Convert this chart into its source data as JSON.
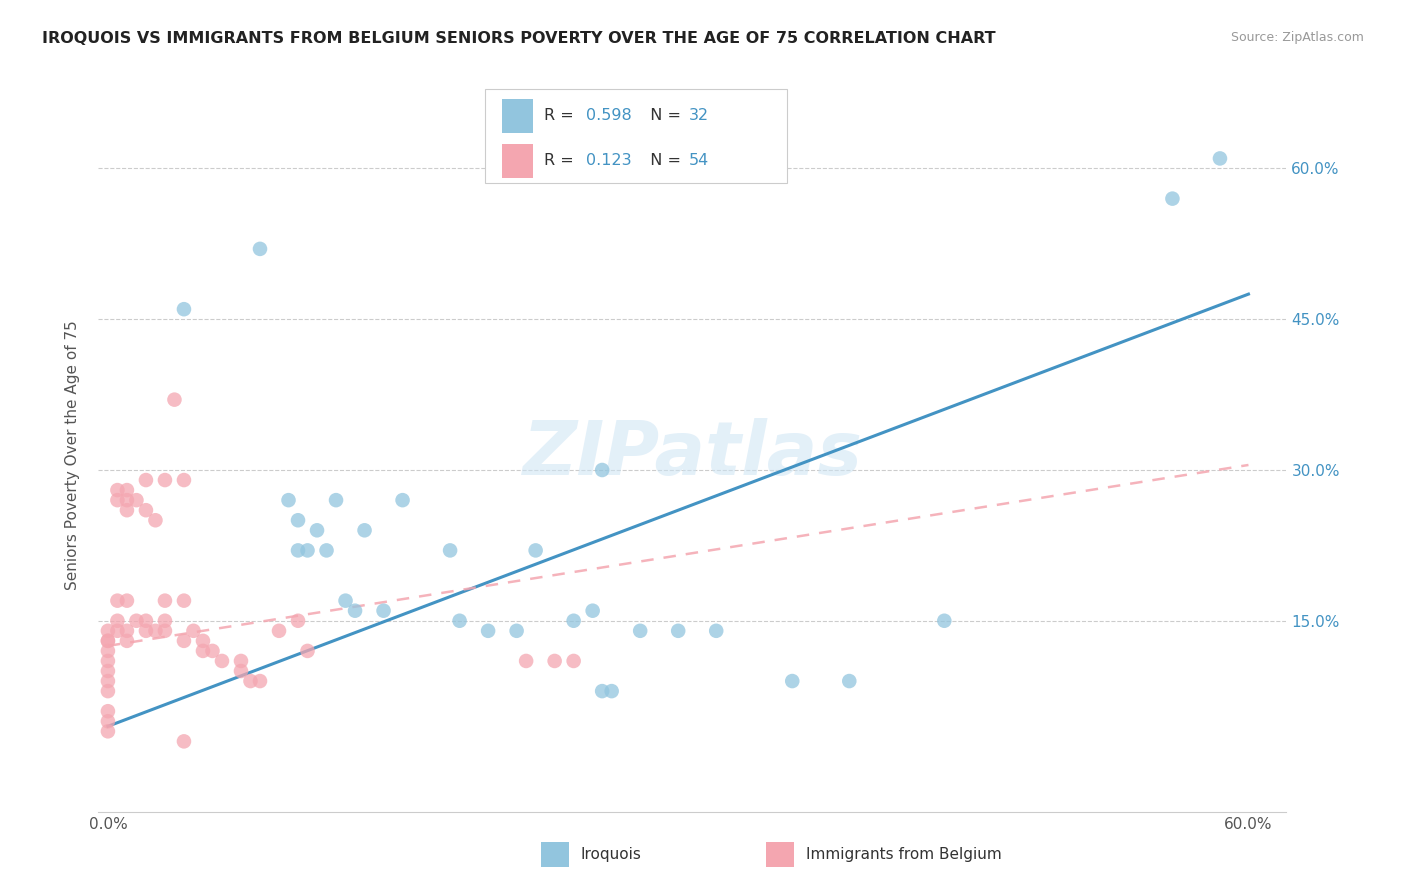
{
  "title": "IROQUOIS VS IMMIGRANTS FROM BELGIUM SENIORS POVERTY OVER THE AGE OF 75 CORRELATION CHART",
  "source": "Source: ZipAtlas.com",
  "ylabel": "Seniors Poverty Over the Age of 75",
  "legend_label1": "Iroquois",
  "legend_label2": "Immigrants from Belgium",
  "R1": 0.598,
  "N1": 32,
  "R2": 0.123,
  "N2": 54,
  "xlim": [
    -0.005,
    0.62
  ],
  "ylim": [
    -0.04,
    0.67
  ],
  "xticks": [
    0.0,
    0.6
  ],
  "xtick_labels": [
    "0.0%",
    "60.0%"
  ],
  "yticks_right": [
    0.15,
    0.3,
    0.45,
    0.6
  ],
  "ytick_labels_right": [
    "15.0%",
    "30.0%",
    "45.0%",
    "60.0%"
  ],
  "color_blue": "#92c5de",
  "color_pink": "#f4a6b0",
  "line_blue": "#4393c3",
  "line_pink": "#f4a6b0",
  "watermark": "ZIPatlas",
  "blue_x": [
    0.04,
    0.08,
    0.095,
    0.1,
    0.1,
    0.105,
    0.11,
    0.115,
    0.12,
    0.125,
    0.13,
    0.135,
    0.145,
    0.155,
    0.18,
    0.185,
    0.2,
    0.215,
    0.225,
    0.245,
    0.255,
    0.26,
    0.265,
    0.28,
    0.3,
    0.32,
    0.36,
    0.39,
    0.44,
    0.56,
    0.585,
    0.26
  ],
  "blue_y": [
    0.46,
    0.52,
    0.27,
    0.25,
    0.22,
    0.22,
    0.24,
    0.22,
    0.27,
    0.17,
    0.16,
    0.24,
    0.16,
    0.27,
    0.22,
    0.15,
    0.14,
    0.14,
    0.22,
    0.15,
    0.16,
    0.08,
    0.08,
    0.14,
    0.14,
    0.14,
    0.09,
    0.09,
    0.15,
    0.57,
    0.61,
    0.3
  ],
  "pink_x": [
    0.0,
    0.0,
    0.0,
    0.0,
    0.0,
    0.0,
    0.0,
    0.0,
    0.0,
    0.0,
    0.0,
    0.005,
    0.005,
    0.005,
    0.005,
    0.005,
    0.01,
    0.01,
    0.01,
    0.01,
    0.01,
    0.01,
    0.015,
    0.015,
    0.02,
    0.02,
    0.02,
    0.02,
    0.025,
    0.025,
    0.03,
    0.03,
    0.03,
    0.03,
    0.035,
    0.04,
    0.04,
    0.04,
    0.04,
    0.045,
    0.05,
    0.05,
    0.055,
    0.06,
    0.07,
    0.07,
    0.075,
    0.08,
    0.09,
    0.1,
    0.105,
    0.22,
    0.235,
    0.245
  ],
  "pink_y": [
    0.14,
    0.13,
    0.13,
    0.12,
    0.11,
    0.1,
    0.09,
    0.08,
    0.06,
    0.05,
    0.04,
    0.28,
    0.27,
    0.17,
    0.15,
    0.14,
    0.28,
    0.27,
    0.26,
    0.17,
    0.14,
    0.13,
    0.27,
    0.15,
    0.29,
    0.26,
    0.15,
    0.14,
    0.25,
    0.14,
    0.29,
    0.17,
    0.15,
    0.14,
    0.37,
    0.29,
    0.17,
    0.13,
    0.03,
    0.14,
    0.13,
    0.12,
    0.12,
    0.11,
    0.11,
    0.1,
    0.09,
    0.09,
    0.14,
    0.15,
    0.12,
    0.11,
    0.11,
    0.11
  ],
  "blue_line_x": [
    0.0,
    0.6
  ],
  "blue_line_y": [
    0.045,
    0.475
  ],
  "pink_line_x": [
    0.0,
    0.6
  ],
  "pink_line_y": [
    0.125,
    0.305
  ]
}
